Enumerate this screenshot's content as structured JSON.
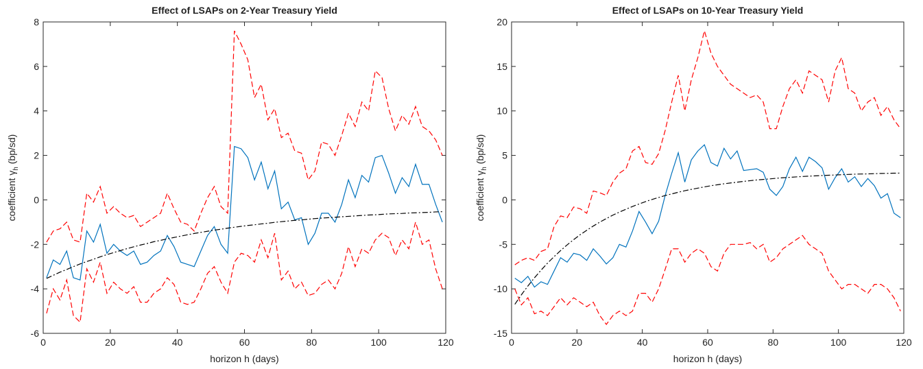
{
  "chart_data": [
    {
      "type": "line",
      "title": "Effect of LSAPs on 2-Year Treasury Yield",
      "xlabel": "horizon h (days)",
      "ylabel": {
        "main": "coefficient γ",
        "sub": "h",
        "rest": " (bp/sd)"
      },
      "xlim": [
        0,
        120
      ],
      "xticks": [
        0,
        20,
        40,
        60,
        80,
        100,
        120
      ],
      "ylim": [
        -6,
        8
      ],
      "yticks": [
        -6,
        -4,
        -2,
        0,
        2,
        4,
        6,
        8
      ],
      "x": [
        1,
        3,
        5,
        7,
        9,
        11,
        13,
        15,
        17,
        19,
        21,
        23,
        25,
        27,
        29,
        31,
        33,
        35,
        37,
        39,
        41,
        43,
        45,
        47,
        49,
        51,
        53,
        55,
        57,
        59,
        61,
        63,
        65,
        67,
        69,
        71,
        73,
        75,
        77,
        79,
        81,
        83,
        85,
        87,
        89,
        91,
        93,
        95,
        97,
        99,
        101,
        103,
        105,
        107,
        109,
        111,
        113,
        115,
        117,
        119
      ],
      "series": [
        {
          "color": "#ff0000",
          "dash": "dashed",
          "values": [
            -1.9,
            -1.4,
            -1.3,
            -1.0,
            -1.8,
            -1.9,
            0.3,
            -0.1,
            0.6,
            -0.6,
            -0.3,
            -0.6,
            -0.8,
            -0.7,
            -1.2,
            -1.0,
            -0.8,
            -0.6,
            0.3,
            -0.4,
            -1.0,
            -1.1,
            -1.4,
            -0.6,
            0.1,
            0.6,
            -0.3,
            -0.6,
            7.6,
            7.0,
            6.3,
            4.6,
            5.2,
            3.6,
            4.1,
            2.8,
            3.0,
            2.2,
            2.1,
            0.9,
            1.3,
            2.6,
            2.5,
            2.0,
            2.9,
            3.9,
            3.3,
            4.4,
            4.0,
            5.8,
            5.5,
            4.1,
            3.1,
            3.8,
            3.4,
            4.2,
            3.3,
            3.1,
            2.7,
            2.0
          ]
        },
        {
          "color": "#ff0000",
          "dash": "dashed",
          "values": [
            -5.1,
            -4.0,
            -4.5,
            -3.6,
            -5.2,
            -5.5,
            -3.1,
            -3.7,
            -2.8,
            -4.2,
            -3.7,
            -4.0,
            -4.2,
            -3.9,
            -4.6,
            -4.6,
            -4.2,
            -4.0,
            -3.5,
            -3.8,
            -4.6,
            -4.7,
            -4.6,
            -4.0,
            -3.3,
            -3.0,
            -3.7,
            -4.2,
            -2.8,
            -2.4,
            -2.5,
            -2.8,
            -1.8,
            -2.6,
            -1.5,
            -3.6,
            -3.2,
            -4.0,
            -3.7,
            -4.3,
            -4.2,
            -3.8,
            -3.6,
            -4.0,
            -3.3,
            -2.1,
            -3.0,
            -2.2,
            -2.4,
            -1.8,
            -1.5,
            -1.7,
            -2.5,
            -1.8,
            -2.2,
            -1.0,
            -2.0,
            -1.8,
            -3.1,
            -4.0
          ]
        },
        {
          "color": "#0072bd",
          "dash": "solid",
          "values": [
            -3.5,
            -2.7,
            -2.9,
            -2.3,
            -3.5,
            -3.6,
            -1.4,
            -1.9,
            -1.1,
            -2.4,
            -2.0,
            -2.3,
            -2.5,
            -2.3,
            -2.9,
            -2.8,
            -2.5,
            -2.3,
            -1.6,
            -2.1,
            -2.8,
            -2.9,
            -3.0,
            -2.3,
            -1.6,
            -1.2,
            -2.0,
            -2.4,
            2.4,
            2.3,
            1.9,
            0.9,
            1.7,
            0.5,
            1.3,
            -0.4,
            -0.1,
            -0.9,
            -0.8,
            -2.0,
            -1.5,
            -0.6,
            -0.6,
            -1.0,
            -0.2,
            0.9,
            0.1,
            1.1,
            0.8,
            1.9,
            2.0,
            1.2,
            0.3,
            1.0,
            0.6,
            1.6,
            0.7,
            0.7,
            -0.2,
            -1.0
          ]
        },
        {
          "color": "#000000",
          "dash": "dashdot",
          "values": [
            -3.53,
            -3.39,
            -3.25,
            -3.13,
            -3.0,
            -2.88,
            -2.77,
            -2.67,
            -2.56,
            -2.46,
            -2.37,
            -2.28,
            -2.19,
            -2.11,
            -2.03,
            -1.96,
            -1.88,
            -1.82,
            -1.75,
            -1.69,
            -1.63,
            -1.57,
            -1.51,
            -1.46,
            -1.41,
            -1.36,
            -1.32,
            -1.27,
            -1.23,
            -1.19,
            -1.15,
            -1.12,
            -1.08,
            -1.05,
            -1.01,
            -0.98,
            -0.95,
            -0.92,
            -0.9,
            -0.87,
            -0.84,
            -0.82,
            -0.8,
            -0.78,
            -0.76,
            -0.74,
            -0.72,
            -0.7,
            -0.68,
            -0.67,
            -0.65,
            -0.63,
            -0.62,
            -0.61,
            -0.59,
            -0.58,
            -0.57,
            -0.56,
            -0.54,
            -0.53
          ]
        }
      ]
    },
    {
      "type": "line",
      "title": "Effect of LSAPs on 10-Year Treasury Yield",
      "xlabel": "horizon h (days)",
      "ylabel": {
        "main": "coefficient γ",
        "sub": "h",
        "rest": " (bp/sd)"
      },
      "xlim": [
        0,
        120
      ],
      "xticks": [
        0,
        20,
        40,
        60,
        80,
        100,
        120
      ],
      "ylim": [
        -15,
        20
      ],
      "yticks": [
        -15,
        -10,
        -5,
        0,
        5,
        10,
        15,
        20
      ],
      "x": [
        1,
        3,
        5,
        7,
        9,
        11,
        13,
        15,
        17,
        19,
        21,
        23,
        25,
        27,
        29,
        31,
        33,
        35,
        37,
        39,
        41,
        43,
        45,
        47,
        49,
        51,
        53,
        55,
        57,
        59,
        61,
        63,
        65,
        67,
        69,
        71,
        73,
        75,
        77,
        79,
        81,
        83,
        85,
        87,
        89,
        91,
        93,
        95,
        97,
        99,
        101,
        103,
        105,
        107,
        109,
        111,
        113,
        115,
        117,
        119
      ],
      "series": [
        {
          "color": "#ff0000",
          "dash": "dashed",
          "values": [
            -7.3,
            -6.8,
            -6.5,
            -6.8,
            -5.8,
            -5.5,
            -3.0,
            -1.8,
            -2.0,
            -0.8,
            -1.0,
            -1.5,
            1.0,
            0.8,
            0.5,
            2.0,
            3.0,
            3.5,
            5.5,
            6.0,
            4.2,
            4.0,
            5.2,
            7.8,
            11.0,
            14.0,
            10.0,
            13.5,
            16.0,
            19.0,
            16.5,
            15.0,
            14.0,
            13.0,
            12.5,
            12.0,
            11.5,
            11.8,
            11.0,
            8.0,
            8.0,
            10.5,
            12.5,
            13.5,
            12.0,
            14.5,
            14.0,
            13.5,
            11.0,
            14.5,
            16.0,
            12.5,
            12.0,
            10.0,
            11.0,
            11.5,
            9.5,
            10.5,
            9.0,
            8.0
          ]
        },
        {
          "color": "#ff0000",
          "dash": "dashed",
          "values": [
            -10.0,
            -11.8,
            -11.0,
            -12.8,
            -12.5,
            -13.0,
            -12.0,
            -11.0,
            -11.8,
            -11.0,
            -11.5,
            -12.0,
            -11.5,
            -13.0,
            -14.0,
            -13.0,
            -12.5,
            -13.0,
            -12.5,
            -10.5,
            -10.5,
            -11.5,
            -10.0,
            -7.8,
            -5.5,
            -5.5,
            -7.0,
            -6.0,
            -5.5,
            -6.0,
            -7.5,
            -8.0,
            -6.0,
            -5.0,
            -5.0,
            -5.0,
            -4.8,
            -5.5,
            -5.0,
            -7.0,
            -6.5,
            -5.5,
            -5.0,
            -4.5,
            -4.0,
            -5.0,
            -5.5,
            -6.0,
            -8.0,
            -9.0,
            -10.0,
            -9.5,
            -9.5,
            -10.0,
            -10.5,
            -9.5,
            -9.5,
            -10.0,
            -11.0,
            -12.5
          ]
        },
        {
          "color": "#0072bd",
          "dash": "solid",
          "values": [
            -8.8,
            -9.3,
            -8.6,
            -9.8,
            -9.2,
            -9.5,
            -8.0,
            -6.5,
            -7.0,
            -6.0,
            -6.2,
            -6.8,
            -5.5,
            -6.3,
            -7.2,
            -6.5,
            -5.0,
            -5.3,
            -3.5,
            -1.3,
            -2.5,
            -3.8,
            -2.4,
            0.5,
            3.0,
            5.3,
            2.0,
            4.5,
            5.5,
            6.2,
            4.2,
            3.8,
            5.8,
            4.6,
            5.5,
            3.3,
            3.4,
            3.5,
            3.1,
            1.2,
            0.5,
            1.5,
            3.5,
            4.8,
            3.2,
            4.8,
            4.3,
            3.6,
            1.2,
            2.5,
            3.5,
            2.0,
            2.6,
            1.5,
            2.4,
            1.6,
            0.2,
            0.7,
            -1.5,
            -2.0
          ]
        },
        {
          "color": "#000000",
          "dash": "dashdot",
          "values": [
            -11.74,
            -10.67,
            -9.68,
            -8.76,
            -7.91,
            -7.11,
            -6.38,
            -5.7,
            -5.06,
            -4.47,
            -3.91,
            -3.42,
            -2.94,
            -2.5,
            -2.1,
            -1.71,
            -1.37,
            -1.05,
            -0.74,
            -0.46,
            -0.19,
            0.05,
            0.27,
            0.49,
            0.67,
            0.86,
            1.03,
            1.18,
            1.32,
            1.46,
            1.59,
            1.7,
            1.81,
            1.9,
            1.99,
            2.08,
            2.16,
            2.24,
            2.3,
            2.36,
            2.43,
            2.49,
            2.53,
            2.58,
            2.63,
            2.67,
            2.7,
            2.74,
            2.77,
            2.8,
            2.83,
            2.86,
            2.89,
            2.91,
            2.92,
            2.95,
            2.97,
            2.98,
            3.0,
            3.01
          ]
        }
      ]
    }
  ]
}
